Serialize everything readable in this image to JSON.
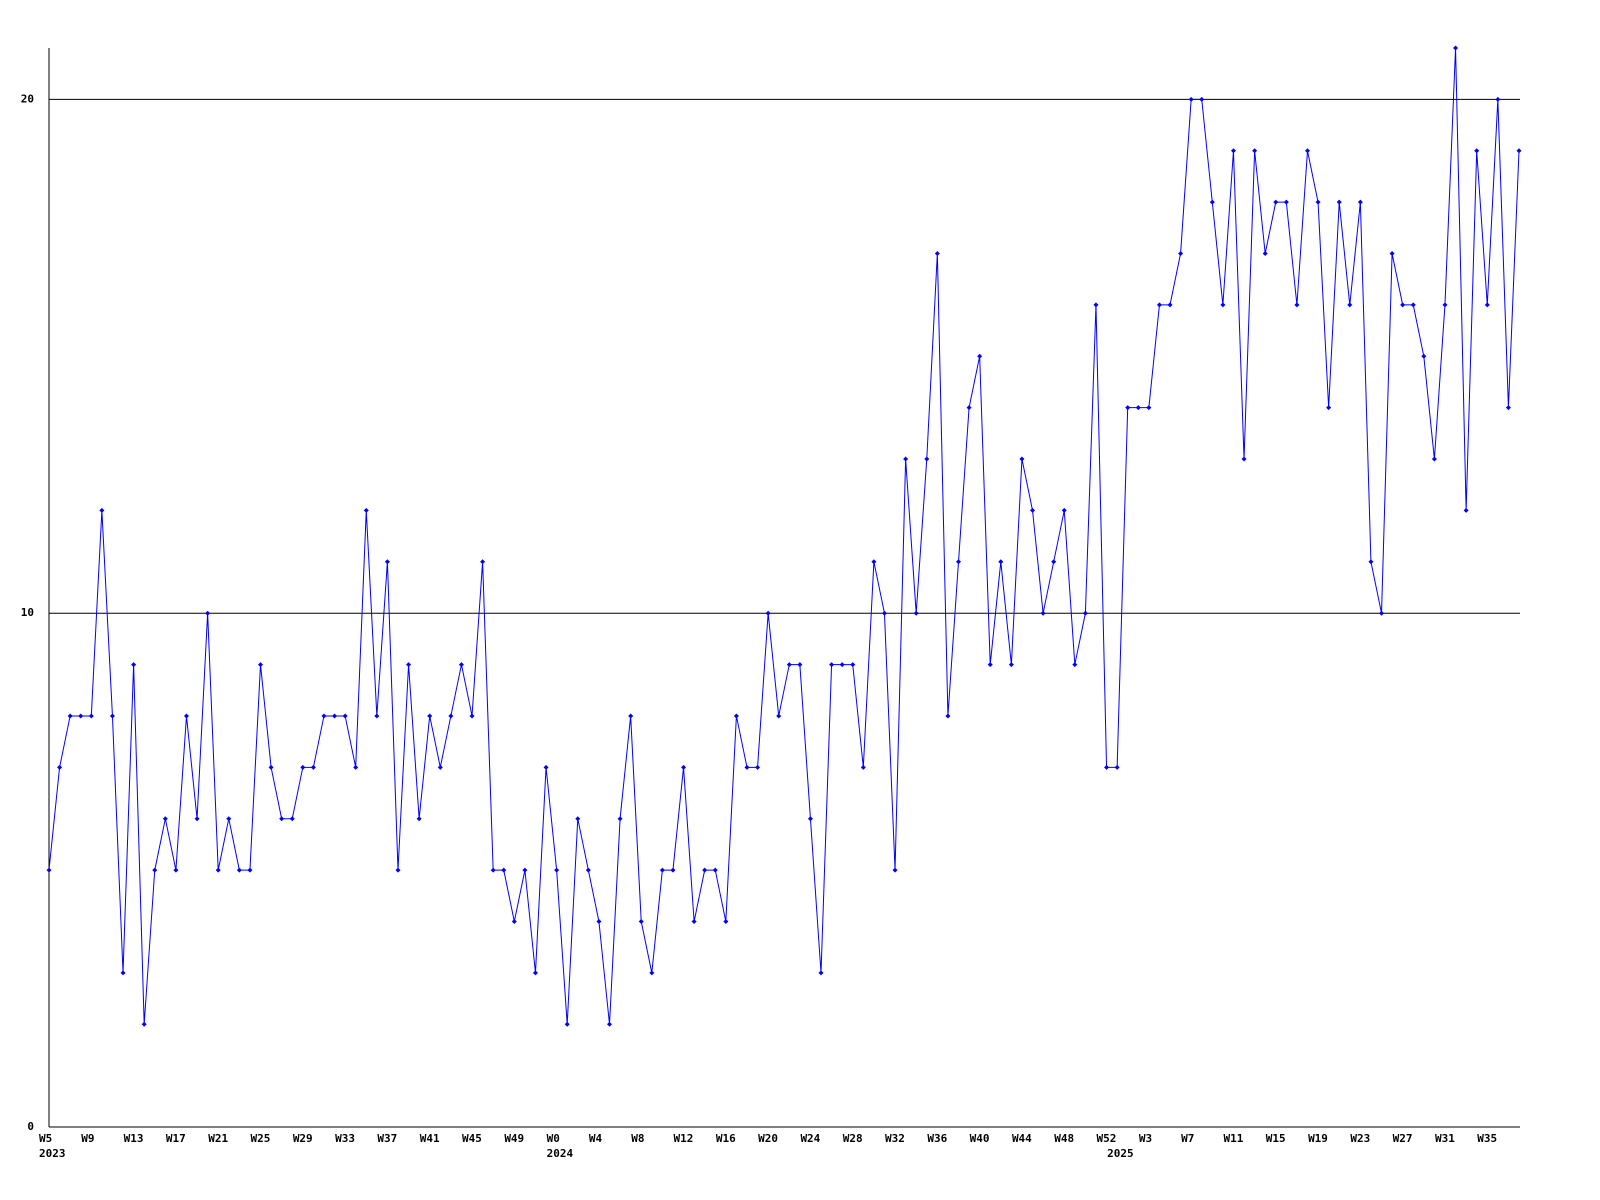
{
  "chart_data": {
    "type": "line",
    "categories": [
      "W5",
      null,
      null,
      null,
      "W9",
      null,
      null,
      null,
      "W13",
      null,
      null,
      null,
      "W17",
      null,
      null,
      null,
      "W21",
      null,
      null,
      null,
      "W25",
      null,
      null,
      null,
      "W29",
      null,
      null,
      null,
      "W33",
      null,
      null,
      null,
      "W37",
      null,
      null,
      null,
      "W41",
      null,
      null,
      null,
      "W45",
      null,
      null,
      null,
      "W49",
      null,
      null,
      null,
      "W0",
      null,
      null,
      null,
      "W4",
      null,
      null,
      null,
      "W8",
      null,
      null,
      null,
      "W12",
      null,
      null,
      null,
      "W16",
      null,
      null,
      null,
      "W20",
      null,
      null,
      null,
      "W24",
      null,
      null,
      null,
      "W28",
      null,
      null,
      null,
      "W32",
      null,
      null,
      null,
      "W36",
      null,
      null,
      null,
      "W40",
      null,
      null,
      null,
      "W44",
      null,
      null,
      null,
      "W48",
      null,
      null,
      null,
      "W52",
      null,
      null,
      null,
      "W3",
      null,
      null,
      null,
      "W7",
      null,
      null,
      null,
      "W11",
      null,
      null,
      null,
      "W15",
      null,
      null,
      null,
      "W19",
      null,
      null,
      null,
      "W23",
      null,
      null,
      null,
      "W27",
      null,
      null,
      null,
      "W31",
      null,
      null,
      null,
      "W35",
      null,
      null,
      null
    ],
    "years": [
      "2023",
      null,
      null,
      null,
      null,
      null,
      null,
      null,
      null,
      null,
      null,
      null,
      null,
      null,
      null,
      null,
      null,
      null,
      null,
      null,
      null,
      null,
      null,
      null,
      null,
      null,
      null,
      null,
      null,
      null,
      null,
      null,
      null,
      null,
      null,
      null,
      null,
      null,
      null,
      null,
      null,
      null,
      null,
      null,
      null,
      null,
      null,
      null,
      "2024",
      null,
      null,
      null,
      null,
      null,
      null,
      null,
      null,
      null,
      null,
      null,
      null,
      null,
      null,
      null,
      null,
      null,
      null,
      null,
      null,
      null,
      null,
      null,
      null,
      null,
      null,
      null,
      null,
      null,
      null,
      null,
      null,
      null,
      null,
      null,
      null,
      null,
      null,
      null,
      null,
      null,
      null,
      null,
      null,
      null,
      null,
      null,
      null,
      null,
      null,
      null,
      null,
      "2025",
      null,
      null,
      null,
      null,
      null,
      null,
      null,
      null,
      null,
      null,
      null,
      null,
      null,
      null,
      null,
      null,
      null,
      null,
      null,
      null,
      null,
      null,
      null,
      null,
      null,
      null,
      null,
      null,
      null,
      null,
      null,
      null,
      null,
      null,
      null,
      null,
      null,
      null
    ],
    "values": [
      5,
      7,
      8,
      8,
      8,
      12,
      8,
      3,
      9,
      2,
      5,
      6,
      5,
      8,
      6,
      10,
      5,
      6,
      5,
      5,
      9,
      7,
      6,
      6,
      7,
      7,
      8,
      8,
      8,
      7,
      12,
      8,
      11,
      5,
      9,
      6,
      8,
      7,
      8,
      9,
      8,
      11,
      5,
      5,
      4,
      5,
      3,
      7,
      5,
      2,
      6,
      5,
      4,
      2,
      6,
      8,
      4,
      3,
      5,
      5,
      7,
      4,
      5,
      5,
      4,
      8,
      7,
      7,
      10,
      8,
      9,
      9,
      6,
      3,
      9,
      9,
      9,
      7,
      11,
      10,
      5,
      13,
      10,
      13,
      17,
      8,
      11,
      14,
      15,
      9,
      11,
      9,
      13,
      12,
      10,
      11,
      12,
      9,
      10,
      16,
      7,
      7,
      14,
      14,
      14,
      16,
      16,
      17,
      20,
      20,
      18,
      16,
      19,
      13,
      19,
      17,
      18,
      18,
      16,
      19,
      18,
      14,
      18,
      16,
      18,
      11,
      10,
      17,
      16,
      16,
      15,
      13,
      16,
      21,
      12,
      19,
      16,
      20,
      14,
      19
    ],
    "color": "#0000ff",
    "ylim": [
      0,
      21
    ],
    "yticks": [
      0,
      10,
      20
    ],
    "grid": true
  }
}
